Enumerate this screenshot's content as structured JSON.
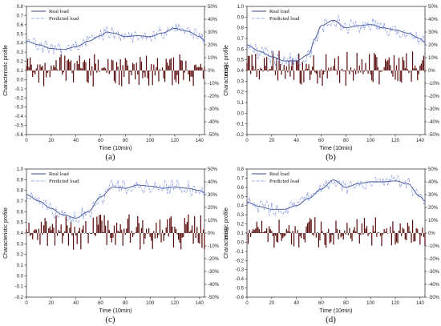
{
  "chart_data": [
    {
      "type": "line",
      "panel_label": "(a)",
      "xlabel": "Time (10min)",
      "ylabel": "Characteristic profile",
      "y2label": "Error",
      "xlim": [
        0,
        144
      ],
      "ylim": [
        -0.6,
        0.8
      ],
      "y2lim": [
        -50,
        50
      ],
      "xticks": [
        "0",
        "20",
        "40",
        "60",
        "80",
        "100",
        "120",
        "140"
      ],
      "yticks": [
        "-0.6",
        "-0.5",
        "-0.4",
        "-0.3",
        "-0.2",
        "-0.1",
        "0.0",
        "0.1",
        "0.2",
        "0.3",
        "0.4",
        "0.5",
        "0.6",
        "0.7",
        "0.8"
      ],
      "y2ticks": [
        "-50%",
        "-40%",
        "-30%",
        "-20%",
        "-10%",
        "0%",
        "10%",
        "20%",
        "30%",
        "40%",
        "50%"
      ],
      "legend": [
        "Real load",
        "Predicted load"
      ],
      "real_knots": [
        [
          0,
          0.42
        ],
        [
          10,
          0.38
        ],
        [
          20,
          0.34
        ],
        [
          30,
          0.33
        ],
        [
          40,
          0.36
        ],
        [
          50,
          0.42
        ],
        [
          60,
          0.48
        ],
        [
          65,
          0.52
        ],
        [
          70,
          0.51
        ],
        [
          80,
          0.47
        ],
        [
          90,
          0.48
        ],
        [
          100,
          0.47
        ],
        [
          110,
          0.51
        ],
        [
          120,
          0.56
        ],
        [
          130,
          0.53
        ],
        [
          140,
          0.47
        ],
        [
          144,
          0.43
        ]
      ],
      "error_range": [
        -13,
        13
      ],
      "seed": 11
    },
    {
      "type": "line",
      "panel_label": "(b)",
      "xlabel": "Time (10min)",
      "ylabel": "Characteristic profile",
      "y2label": "Error",
      "xlim": [
        0,
        144
      ],
      "ylim": [
        -0.2,
        1.0
      ],
      "y2lim": [
        -50,
        50
      ],
      "xticks": [
        "0",
        "20",
        "40",
        "60",
        "80",
        "100",
        "120",
        "140"
      ],
      "yticks": [
        "-0.2",
        "-0.1",
        "0.0",
        "0.1",
        "0.2",
        "0.3",
        "0.4",
        "0.5",
        "0.6",
        "0.7",
        "0.8",
        "0.9",
        "1.0"
      ],
      "y2ticks": [
        "-50%",
        "-40%",
        "-30%",
        "-20%",
        "-10%",
        "0%",
        "10%",
        "20%",
        "30%",
        "40%",
        "50%"
      ],
      "legend": [
        "Real load",
        "Predicted load"
      ],
      "real_knots": [
        [
          0,
          0.64
        ],
        [
          10,
          0.58
        ],
        [
          20,
          0.53
        ],
        [
          30,
          0.49
        ],
        [
          40,
          0.49
        ],
        [
          50,
          0.55
        ],
        [
          55,
          0.7
        ],
        [
          60,
          0.82
        ],
        [
          70,
          0.87
        ],
        [
          80,
          0.8
        ],
        [
          90,
          0.82
        ],
        [
          100,
          0.83
        ],
        [
          110,
          0.8
        ],
        [
          120,
          0.78
        ],
        [
          130,
          0.75
        ],
        [
          140,
          0.7
        ],
        [
          144,
          0.66
        ]
      ],
      "error_range": [
        -12,
        16
      ],
      "seed": 23
    },
    {
      "type": "line",
      "panel_label": "(c)",
      "xlabel": "Time (10min)",
      "ylabel": "Characteristic profile",
      "y2label": "Error",
      "xlim": [
        0,
        144
      ],
      "ylim": [
        -0.2,
        1.0
      ],
      "y2lim": [
        -50,
        50
      ],
      "xticks": [
        "0",
        "20",
        "40",
        "60",
        "80",
        "100",
        "120",
        "140"
      ],
      "yticks": [
        "-0.2",
        "-0.1",
        "0.0",
        "0.1",
        "0.2",
        "0.3",
        "0.4",
        "0.5",
        "0.6",
        "0.7",
        "0.8",
        "0.9",
        "1.0"
      ],
      "y2ticks": [
        "-50%",
        "-40%",
        "-30%",
        "-20%",
        "-10%",
        "0%",
        "10%",
        "20%",
        "30%",
        "40%",
        "50%"
      ],
      "legend": [
        "Real load",
        "Predicted load"
      ],
      "real_knots": [
        [
          0,
          0.76
        ],
        [
          10,
          0.7
        ],
        [
          20,
          0.63
        ],
        [
          30,
          0.57
        ],
        [
          40,
          0.54
        ],
        [
          50,
          0.6
        ],
        [
          60,
          0.74
        ],
        [
          70,
          0.83
        ],
        [
          80,
          0.82
        ],
        [
          90,
          0.85
        ],
        [
          100,
          0.84
        ],
        [
          110,
          0.82
        ],
        [
          120,
          0.83
        ],
        [
          130,
          0.82
        ],
        [
          140,
          0.8
        ],
        [
          144,
          0.78
        ]
      ],
      "error_range": [
        -13,
        15
      ],
      "seed": 37
    },
    {
      "type": "line",
      "panel_label": "(d)",
      "xlabel": "Time (10min)",
      "ylabel": "Characteristic profile",
      "y2label": "Error",
      "xlim": [
        0,
        144
      ],
      "ylim": [
        -0.6,
        0.8
      ],
      "y2lim": [
        -50,
        50
      ],
      "xticks": [
        "0",
        "20",
        "40",
        "60",
        "80",
        "100",
        "120",
        "140"
      ],
      "yticks": [
        "-0.6",
        "-0.5",
        "-0.4",
        "-0.3",
        "-0.2",
        "-0.1",
        "0.0",
        "0.1",
        "0.2",
        "0.3",
        "0.4",
        "0.5",
        "0.6",
        "0.7",
        "0.8"
      ],
      "y2ticks": [
        "-50%",
        "-40%",
        "-30%",
        "-20%",
        "-10%",
        "0%",
        "10%",
        "20%",
        "30%",
        "40%",
        "50%"
      ],
      "legend": [
        "Real load",
        "Predicted load"
      ],
      "real_knots": [
        [
          0,
          0.44
        ],
        [
          10,
          0.39
        ],
        [
          20,
          0.36
        ],
        [
          30,
          0.36
        ],
        [
          40,
          0.4
        ],
        [
          50,
          0.48
        ],
        [
          60,
          0.58
        ],
        [
          70,
          0.68
        ],
        [
          80,
          0.6
        ],
        [
          90,
          0.64
        ],
        [
          100,
          0.66
        ],
        [
          110,
          0.66
        ],
        [
          120,
          0.67
        ],
        [
          130,
          0.64
        ],
        [
          140,
          0.5
        ],
        [
          144,
          0.45
        ]
      ],
      "error_range": [
        -12,
        13
      ],
      "seed": 53
    }
  ],
  "colors": {
    "real_line": "#3a4a8c",
    "predicted_line": "#6f86e6",
    "error_bars": "#5a0d0d",
    "axis": "#222222"
  }
}
